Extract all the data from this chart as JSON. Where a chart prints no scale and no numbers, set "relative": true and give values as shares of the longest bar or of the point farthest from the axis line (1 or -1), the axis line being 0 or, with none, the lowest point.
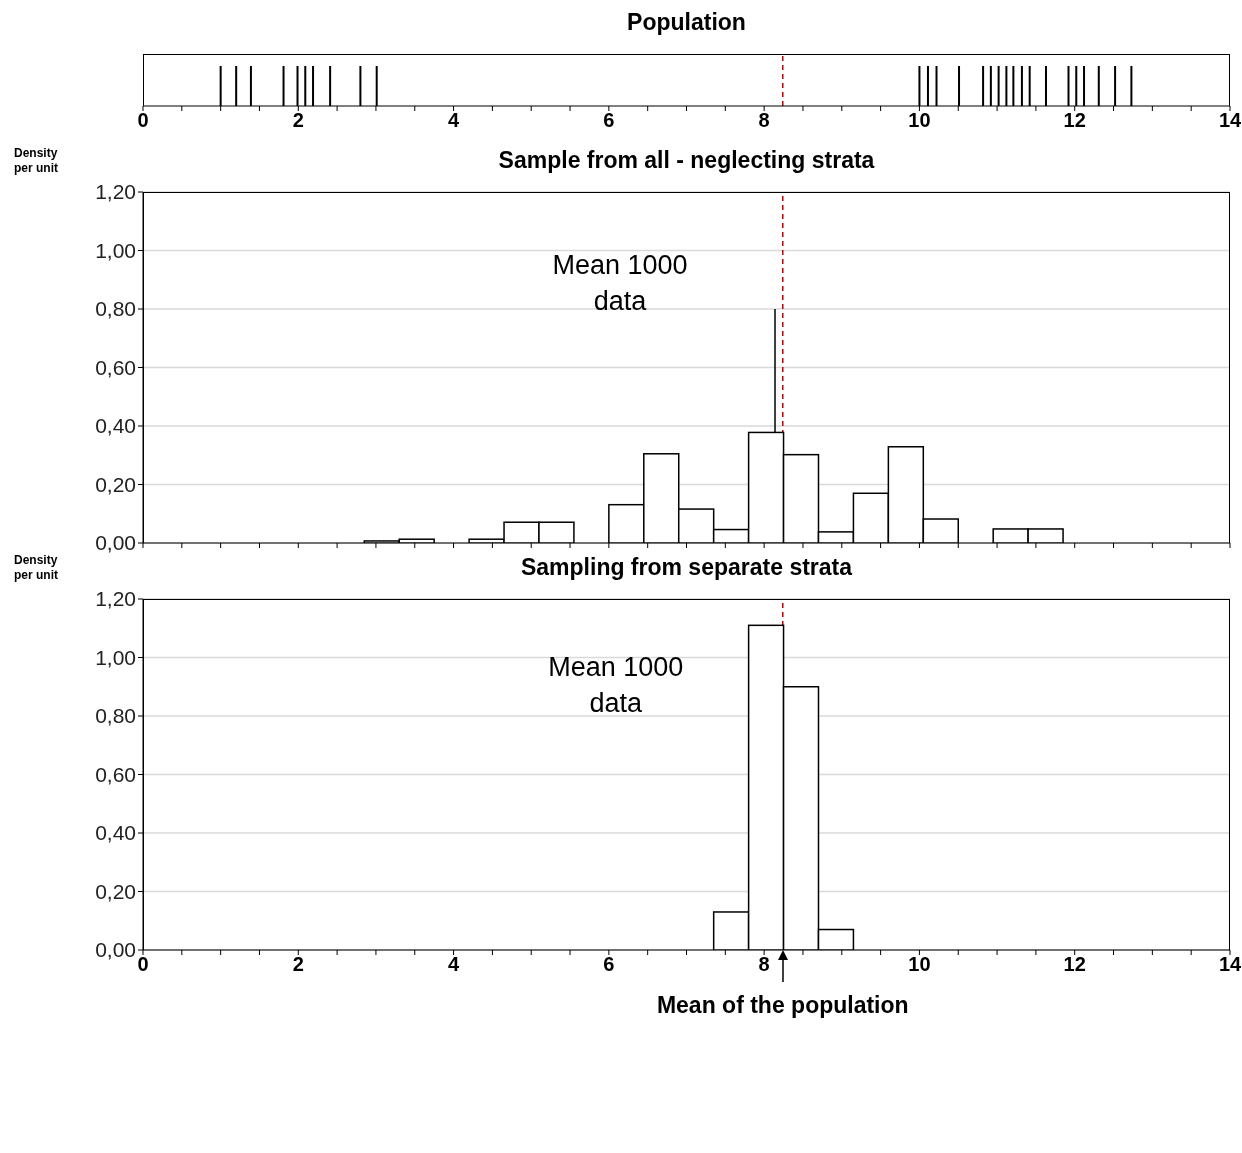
{
  "chart_data": [
    {
      "type": "bar",
      "title": "Population",
      "x": [
        1.0,
        1.2,
        1.39,
        1.81,
        1.99,
        2.09,
        2.19,
        2.41,
        2.8,
        3.01,
        10.0,
        10.11,
        10.22,
        10.51,
        10.82,
        10.92,
        11.02,
        11.12,
        11.21,
        11.32,
        11.42,
        11.63,
        11.92,
        12.02,
        12.12,
        12.31,
        12.52,
        12.73
      ],
      "values": [
        1,
        1,
        1,
        1,
        1,
        1,
        1,
        1,
        1,
        1,
        1,
        1,
        1,
        1,
        1,
        1,
        1,
        1,
        1,
        1,
        1,
        1,
        1,
        1,
        1,
        1,
        1,
        1
      ],
      "color": "#000000",
      "relative": true,
      "xlim": [
        0,
        14
      ],
      "xticks": [
        0,
        {
          "value": 0.5,
          "label": null
        },
        {
          "value": 1,
          "label": null
        },
        {
          "value": 1.5,
          "label": null
        },
        2,
        {
          "value": 2.5,
          "label": null
        },
        {
          "value": 3,
          "label": null
        },
        {
          "value": 3.5,
          "label": null
        },
        4,
        {
          "value": 4.5,
          "label": null
        },
        {
          "value": 5,
          "label": null
        },
        {
          "value": 5.5,
          "label": null
        },
        6,
        {
          "value": 6.5,
          "label": null
        },
        {
          "value": 7,
          "label": null
        },
        {
          "value": 7.5,
          "label": null
        },
        8,
        {
          "value": 8.5,
          "label": null
        },
        {
          "value": 9,
          "label": null
        },
        {
          "value": 9.5,
          "label": null
        },
        10,
        {
          "value": 10.5,
          "label": null
        },
        {
          "value": 11,
          "label": null
        },
        {
          "value": 11.5,
          "label": null
        },
        12,
        {
          "value": 12.5,
          "label": null
        },
        {
          "value": 13,
          "label": null
        },
        {
          "value": 13.5,
          "label": null
        },
        14
      ],
      "tick_labels": "x",
      "ref_lines": [
        {
          "axis": "x",
          "value": 8.24,
          "color": "#c00000",
          "line_style": "dashed"
        }
      ]
    },
    {
      "type": "histogram",
      "title": "Sample from all - neglecting strata",
      "ylabel": "Density per unit",
      "bins": [
        1.5,
        1.95,
        2.4,
        2.85,
        3.3,
        3.75,
        4.2,
        4.65,
        5.1,
        5.55,
        6.0,
        6.45,
        6.9,
        7.35,
        7.8,
        8.25,
        8.7,
        9.15,
        9.6,
        10.05,
        10.5,
        10.95,
        11.4,
        11.85,
        12.3,
        12.75
      ],
      "values": [
        0,
        0,
        0,
        0.007,
        0.013,
        0,
        0.013,
        0.071,
        0.071,
        0,
        0.131,
        0.305,
        0.116,
        0.046,
        0.378,
        0.302,
        0.038,
        0.17,
        0.329,
        0.082,
        0,
        0.048,
        0.048,
        0,
        0
      ],
      "color": "#ffffff",
      "xlim": [
        0,
        14
      ],
      "xticks": [
        0,
        {
          "value": 0.5,
          "label": null
        },
        {
          "value": 1,
          "label": null
        },
        {
          "value": 1.5,
          "label": null
        },
        2,
        {
          "value": 2.5,
          "label": null
        },
        {
          "value": 3,
          "label": null
        },
        {
          "value": 3.5,
          "label": null
        },
        4,
        {
          "value": 4.5,
          "label": null
        },
        {
          "value": 5,
          "label": null
        },
        {
          "value": 5.5,
          "label": null
        },
        6,
        {
          "value": 6.5,
          "label": null
        },
        {
          "value": 7,
          "label": null
        },
        {
          "value": 7.5,
          "label": null
        },
        8,
        {
          "value": 8.5,
          "label": null
        },
        {
          "value": 9,
          "label": null
        },
        {
          "value": 9.5,
          "label": null
        },
        10,
        {
          "value": 10.5,
          "label": null
        },
        {
          "value": 11,
          "label": null
        },
        {
          "value": 11.5,
          "label": null
        },
        12,
        {
          "value": 12.5,
          "label": null
        },
        {
          "value": 13,
          "label": null
        },
        {
          "value": 13.5,
          "label": null
        },
        14
      ],
      "ylim": [
        0,
        1.2
      ],
      "yticks": [
        {
          "value": 0,
          "label": "0,00"
        },
        {
          "value": 0.2,
          "label": "0,20"
        },
        {
          "value": 0.4,
          "label": "0,40"
        },
        {
          "value": 0.6,
          "label": "0,60"
        },
        {
          "value": 0.8,
          "label": "0,80"
        },
        {
          "value": 1.0,
          "label": "1,00"
        },
        {
          "value": 1.2,
          "label": "1,20"
        }
      ],
      "grid": "y",
      "tick_labels": "y",
      "ref_lines": [
        {
          "axis": "x",
          "value": 8.24,
          "color": "#c00000",
          "line_style": "dashed"
        },
        {
          "axis": "x",
          "value": 8.14,
          "color": "#000000",
          "line_style": "solid",
          "label": "Mean 1000 data"
        }
      ]
    },
    {
      "type": "histogram",
      "title": "Sampling from separate strata",
      "ylabel": "Density per unit",
      "bins": [
        1.5,
        1.95,
        2.4,
        2.85,
        3.3,
        3.75,
        4.2,
        4.65,
        5.1,
        5.55,
        6.0,
        6.45,
        6.9,
        7.35,
        7.8,
        8.25,
        8.7,
        9.15,
        9.6,
        10.05,
        10.5,
        10.95,
        11.4,
        11.85,
        12.3,
        12.75
      ],
      "values": [
        0,
        0,
        0,
        0,
        0,
        0,
        0,
        0,
        0,
        0,
        0,
        0,
        0,
        0.13,
        1.11,
        0.9,
        0.07,
        0,
        0,
        0,
        0,
        0,
        0,
        0,
        0
      ],
      "color": "#ffffff",
      "xlim": [
        0,
        14
      ],
      "xticks": [
        0,
        {
          "value": 0.5,
          "label": null
        },
        {
          "value": 1,
          "label": null
        },
        {
          "value": 1.5,
          "label": null
        },
        2,
        {
          "value": 2.5,
          "label": null
        },
        {
          "value": 3,
          "label": null
        },
        {
          "value": 3.5,
          "label": null
        },
        4,
        {
          "value": 4.5,
          "label": null
        },
        {
          "value": 5,
          "label": null
        },
        {
          "value": 5.5,
          "label": null
        },
        6,
        {
          "value": 6.5,
          "label": null
        },
        {
          "value": 7,
          "label": null
        },
        {
          "value": 7.5,
          "label": null
        },
        8,
        {
          "value": 8.5,
          "label": null
        },
        {
          "value": 9,
          "label": null
        },
        {
          "value": 9.5,
          "label": null
        },
        10,
        {
          "value": 10.5,
          "label": null
        },
        {
          "value": 11,
          "label": null
        },
        {
          "value": 11.5,
          "label": null
        },
        12,
        {
          "value": 12.5,
          "label": null
        },
        {
          "value": 13,
          "label": null
        },
        {
          "value": 13.5,
          "label": null
        },
        14
      ],
      "ylim": [
        0,
        1.2
      ],
      "yticks": [
        {
          "value": 0,
          "label": "0,00"
        },
        {
          "value": 0.2,
          "label": "0,20"
        },
        {
          "value": 0.4,
          "label": "0,40"
        },
        {
          "value": 0.6,
          "label": "0,60"
        },
        {
          "value": 0.8,
          "label": "0,80"
        },
        {
          "value": 1.0,
          "label": "1,00"
        },
        {
          "value": 1.2,
          "label": "1,20"
        }
      ],
      "grid": "y",
      "ref_lines": [
        {
          "axis": "x",
          "value": 8.24,
          "color": "#c00000",
          "line_style": "dashed",
          "label": "Mean of the population"
        }
      ],
      "annotations": [
        "Mean 1000 data"
      ]
    }
  ]
}
